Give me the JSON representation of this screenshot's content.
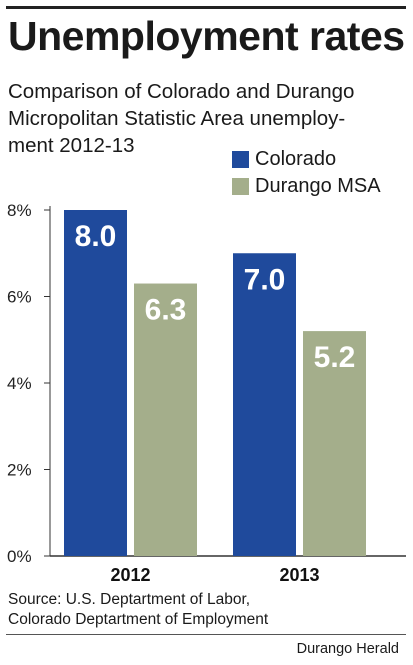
{
  "title": "Unemployment rates",
  "subtitle_lines": [
    "Comparison of Colorado and Durango",
    "Micropolitan Statistic Area unemploy-",
    "ment 2012-13"
  ],
  "source_lines": [
    "Source: U.S. Deptartment of Labor,",
    "Colorado Deptartment of Employment"
  ],
  "credit": "Durango Herald",
  "colors": {
    "colorado": "#1f4a9c",
    "durango": "#a4ae8b",
    "bar_label": "#ffffff"
  },
  "chart_data": {
    "type": "bar",
    "categories": [
      "2012",
      "2013"
    ],
    "series": [
      {
        "name": "Colorado",
        "values": [
          8.0,
          7.0
        ],
        "value_labels": [
          "8.0",
          "7.0"
        ]
      },
      {
        "name": "Durango MSA",
        "values": [
          6.3,
          5.2
        ],
        "value_labels": [
          "6.3",
          "5.2"
        ]
      }
    ],
    "yticks": [
      0,
      2,
      4,
      6,
      8
    ],
    "ytick_labels": [
      "0%",
      "2%",
      "4%",
      "6%",
      "8%"
    ],
    "ylim": [
      0,
      8
    ],
    "grid": false,
    "legend_position": "top-right"
  }
}
